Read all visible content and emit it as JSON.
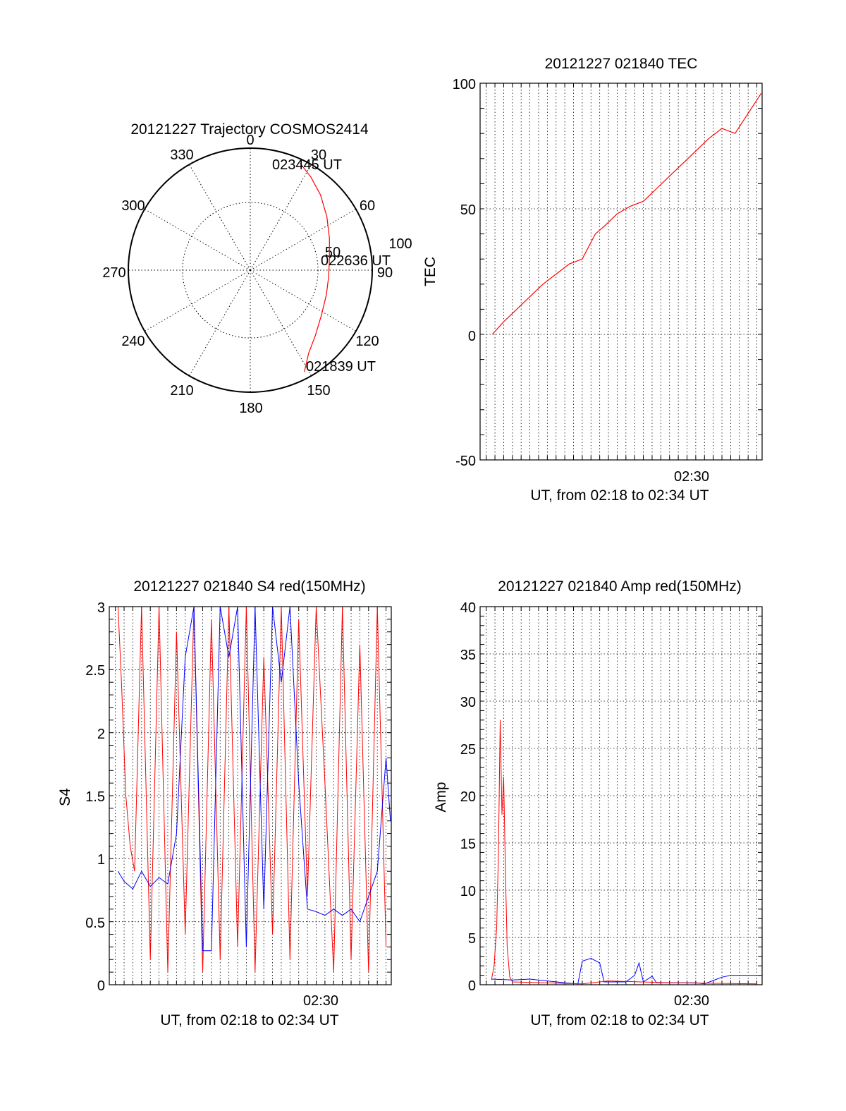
{
  "colors": {
    "red_series": "#ff0000",
    "blue_series": "#0000ff",
    "axes": "#000000",
    "grid": "#000000"
  },
  "chart_data": [
    {
      "type": "polar-trajectory",
      "title": "20121227 Trajectory COSMOS2414",
      "angle_labels": [
        "0",
        "30",
        "60",
        "90",
        "120",
        "150",
        "180",
        "210",
        "240",
        "270",
        "300",
        "330"
      ],
      "radius_labels": [
        "50",
        "100"
      ],
      "grid": true,
      "track": {
        "start_label": "021839 UT",
        "mid_label": "022636 UT",
        "end_label": "023445 UT",
        "points": [
          {
            "azimuth": 152,
            "zenith": 85
          },
          {
            "azimuth": 145,
            "zenith": 75
          },
          {
            "azimuth": 135,
            "zenith": 68
          },
          {
            "azimuth": 122,
            "zenith": 62
          },
          {
            "azimuth": 108,
            "zenith": 59
          },
          {
            "azimuth": 95,
            "zenith": 58
          },
          {
            "azimuth": 82,
            "zenith": 59
          },
          {
            "azimuth": 68,
            "zenith": 63
          },
          {
            "azimuth": 55,
            "zenith": 69
          },
          {
            "azimuth": 43,
            "zenith": 76
          },
          {
            "azimuth": 33,
            "zenith": 82
          },
          {
            "azimuth": 25,
            "zenith": 87
          }
        ]
      }
    },
    {
      "type": "line",
      "title": "20121227 021840 TEC",
      "xlabel": "UT, from 02:18 to 02:34 UT",
      "ylabel": "TEC",
      "xlim": [
        2.3,
        34.6
      ],
      "ylim": [
        -50,
        100
      ],
      "yticks": [
        "-50",
        "0",
        "50",
        "100"
      ],
      "xticks": [
        {
          "value": 30,
          "label": "02:30"
        }
      ],
      "grid": true,
      "series": [
        {
          "color": "red",
          "x": [
            3.7,
            5,
            6.5,
            8,
            9.5,
            11,
            12.5,
            14,
            15.5,
            16.5,
            18,
            19.5,
            21,
            22.5,
            24,
            25.5,
            27,
            28.5,
            30,
            31.5,
            33,
            34.5
          ],
          "y": [
            0,
            5,
            10,
            15,
            20,
            24,
            28,
            30,
            40,
            43,
            48,
            51,
            53,
            58,
            63,
            68,
            73,
            78,
            82,
            80,
            88,
            96
          ]
        }
      ]
    },
    {
      "type": "line",
      "title": "20121227 021840 S4 red(150MHz)",
      "xlabel": "UT, from 02:18 to 02:34 UT",
      "ylabel": "S4",
      "xlim": [
        2.3,
        34.6
      ],
      "ylim": [
        0,
        3
      ],
      "yticks": [
        "0",
        "0.5",
        "1",
        "1.5",
        "2",
        "2.5",
        "3"
      ],
      "xticks": [
        {
          "value": 30,
          "label": "02:30"
        }
      ],
      "grid": true,
      "series": [
        {
          "color": "red",
          "x": [
            3.3,
            3.7,
            4.2,
            4.7,
            5.2,
            6,
            7,
            8,
            9,
            10,
            11,
            12,
            13,
            14,
            15,
            16,
            17,
            18,
            19,
            20,
            21,
            22,
            23,
            24,
            25,
            26,
            27,
            28,
            29,
            30,
            31,
            32,
            33,
            34
          ],
          "y": [
            3,
            2.4,
            1.5,
            1.1,
            0.9,
            3,
            0.2,
            3,
            0.1,
            2.8,
            0.4,
            3,
            0.1,
            2.9,
            0.2,
            3,
            0.3,
            3,
            0.1,
            2.6,
            0.4,
            3,
            0.2,
            2.9,
            0.7,
            3,
            1.6,
            0.1,
            3,
            0.2,
            2.7,
            0.1,
            3,
            0.3
          ]
        },
        {
          "color": "blue",
          "x": [
            3.3,
            4,
            5,
            6,
            7,
            8,
            9,
            10,
            11,
            12,
            13,
            14,
            15,
            16,
            17,
            18,
            19,
            20,
            21,
            22,
            23,
            24,
            25,
            26,
            27,
            28,
            29,
            30,
            31,
            32,
            33,
            34,
            34.5
          ],
          "y": [
            0.9,
            0.82,
            0.76,
            0.9,
            0.78,
            0.85,
            0.8,
            1.2,
            2.6,
            3,
            0.27,
            0.27,
            3,
            2.6,
            3,
            0.3,
            3,
            0.6,
            3,
            2.4,
            3,
            1.6,
            0.6,
            0.58,
            0.55,
            0.6,
            0.55,
            0.6,
            0.5,
            0.7,
            0.9,
            1.8,
            1.3
          ]
        }
      ]
    },
    {
      "type": "line",
      "title": "20121227 021840 Amp red(150MHz)",
      "xlabel": "UT, from 02:18 to 02:34 UT",
      "ylabel": "Amp",
      "xlim": [
        2.3,
        34.6
      ],
      "ylim": [
        0,
        40
      ],
      "yticks": [
        "0",
        "5",
        "10",
        "15",
        "20",
        "25",
        "30",
        "35",
        "40"
      ],
      "xticks": [
        {
          "value": 30,
          "label": "02:30"
        }
      ],
      "grid": true,
      "series": [
        {
          "color": "red",
          "x": [
            3.6,
            3.9,
            4.2,
            4.4,
            4.6,
            4.8,
            5.0,
            5.2,
            5.4,
            5.7,
            6.0,
            14,
            17,
            24,
            34
          ],
          "y": [
            0.5,
            2,
            6,
            14,
            28,
            18,
            22,
            12,
            4,
            0.8,
            0.3,
            0.1,
            0.4,
            0.2,
            0.1
          ]
        },
        {
          "color": "blue",
          "x": [
            3.6,
            6,
            8,
            10,
            12,
            13.5,
            14,
            15,
            16,
            16.5,
            19,
            20,
            20.5,
            21,
            22,
            22.5,
            23,
            26,
            27,
            28,
            30,
            31,
            32,
            33,
            34,
            34.5
          ],
          "y": [
            0.6,
            0.5,
            0.6,
            0.4,
            0.2,
            0.1,
            2.5,
            2.8,
            2.3,
            0.3,
            0.3,
            1.0,
            2.3,
            0.3,
            0.9,
            0.2,
            0.2,
            0.2,
            0.2,
            0.1,
            0.8,
            1.0,
            1.0,
            1.0,
            1.0,
            1.0
          ]
        }
      ]
    }
  ]
}
